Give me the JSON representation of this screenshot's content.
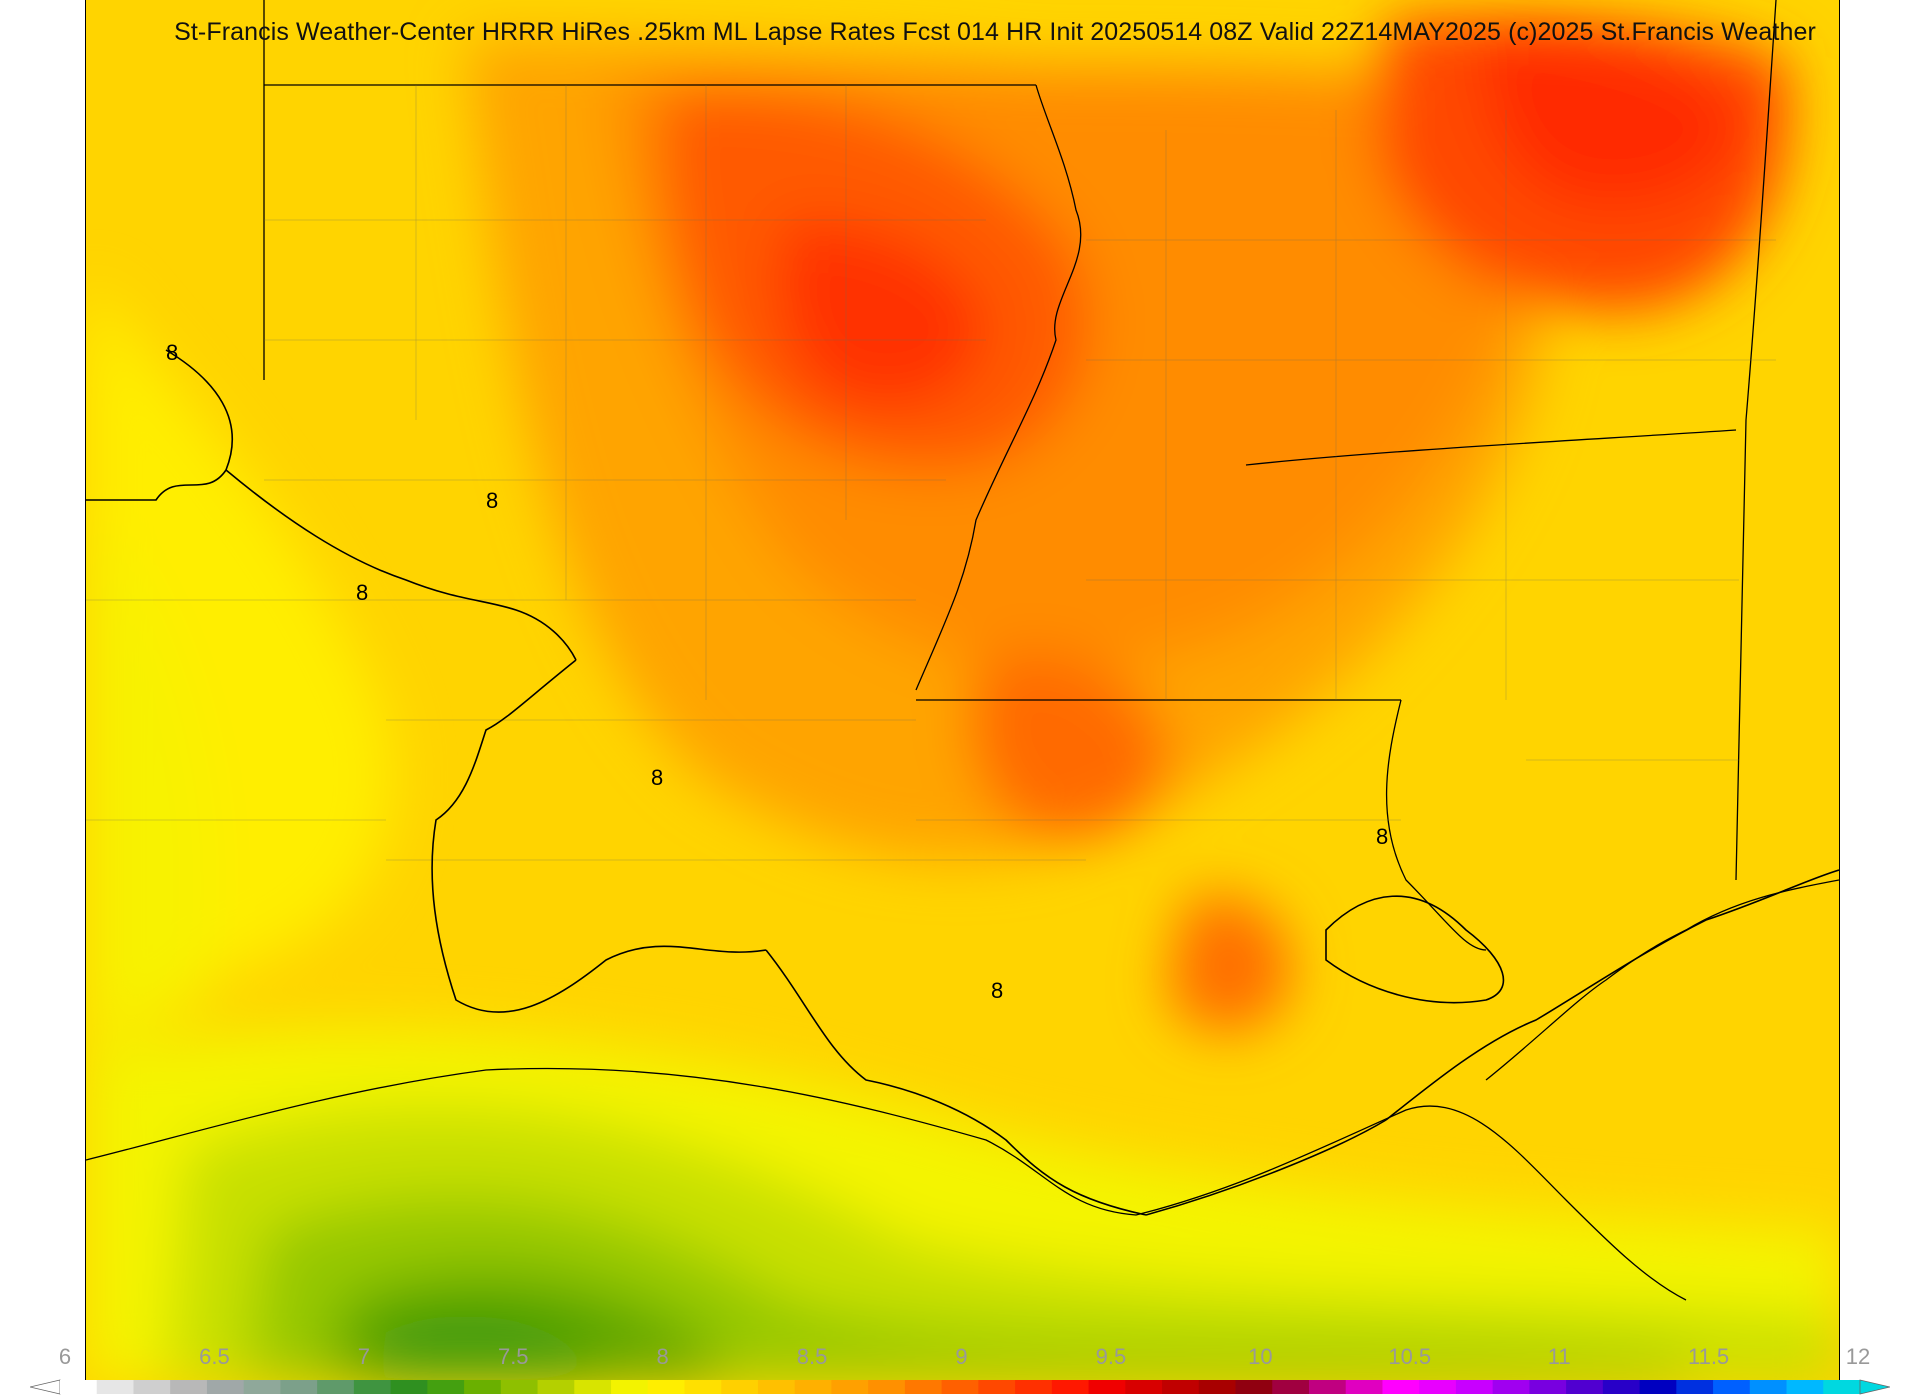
{
  "title": "St-Francis Weather-Center HRRR HiRes .25km ML Lapse Rates  Fcst 014 HR Init 20250514 08Z  Valid 22Z14MAY2025    (c)2025 St.Francis Weather",
  "colorbar": {
    "tick_labels": [
      "6",
      "6.5",
      "7",
      "7.5",
      "8",
      "8.5",
      "9",
      "9.5",
      "10",
      "10.5",
      "11",
      "11.5",
      "12"
    ],
    "colors": [
      "#ffffff",
      "#e6e6e6",
      "#cfcfcf",
      "#b8b8b8",
      "#a0a8a8",
      "#8fa89a",
      "#7ca08a",
      "#5f9a6a",
      "#3f9440",
      "#2f9020",
      "#44a010",
      "#6ab000",
      "#8ec000",
      "#b4d000",
      "#d8e400",
      "#f3f300",
      "#ffee00",
      "#ffe000",
      "#ffd000",
      "#ffc000",
      "#ffb000",
      "#ffa000",
      "#ff9000",
      "#ff7800",
      "#ff6000",
      "#ff4800",
      "#ff3000",
      "#ff1800",
      "#f00000",
      "#d80000",
      "#c00000",
      "#a80000",
      "#900010",
      "#a00040",
      "#c00080",
      "#e000c0",
      "#ff00ff",
      "#e800ff",
      "#c800ff",
      "#a000f0",
      "#7800e0",
      "#5000d0",
      "#2800c8",
      "#0000c0",
      "#0030e0",
      "#0060ff",
      "#0090ff",
      "#00b8ff",
      "#00d8e0"
    ]
  },
  "contour_labels": [
    "8",
    "8",
    "8",
    "8",
    "8",
    "8"
  ],
  "legend": {
    "field": "ML Lapse Rates",
    "range": [
      6,
      12
    ]
  }
}
